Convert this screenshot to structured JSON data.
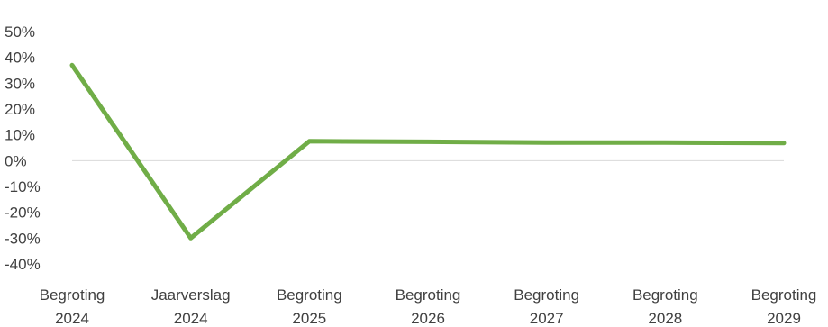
{
  "chart_data": {
    "type": "line",
    "title": "",
    "xlabel": "",
    "ylabel": "",
    "categories": [
      [
        "Begroting",
        "2024"
      ],
      [
        "Jaarverslag",
        "2024"
      ],
      [
        "Begroting",
        "2025"
      ],
      [
        "Begroting",
        "2026"
      ],
      [
        "Begroting",
        "2027"
      ],
      [
        "Begroting",
        "2028"
      ],
      [
        "Begroting",
        "2029"
      ]
    ],
    "series": [
      {
        "values": [
          37,
          -30,
          7.5,
          7.3,
          7,
          7,
          6.8
        ],
        "color": "#70AD47"
      }
    ],
    "ylim": [
      -40,
      50
    ],
    "yticks": [
      50,
      40,
      30,
      20,
      10,
      0,
      -10,
      -20,
      -30,
      -40
    ],
    "ytick_labels": [
      "50%",
      "40%",
      "30%",
      "20%",
      "10%",
      "0%",
      "-10%",
      "-20%",
      "-30%",
      "-40%"
    ],
    "gridlines": false,
    "zero_line": true,
    "legend": "none",
    "colors": {
      "line": "#70AD47",
      "axis": "#D9D9D9",
      "text": "#404040"
    }
  }
}
